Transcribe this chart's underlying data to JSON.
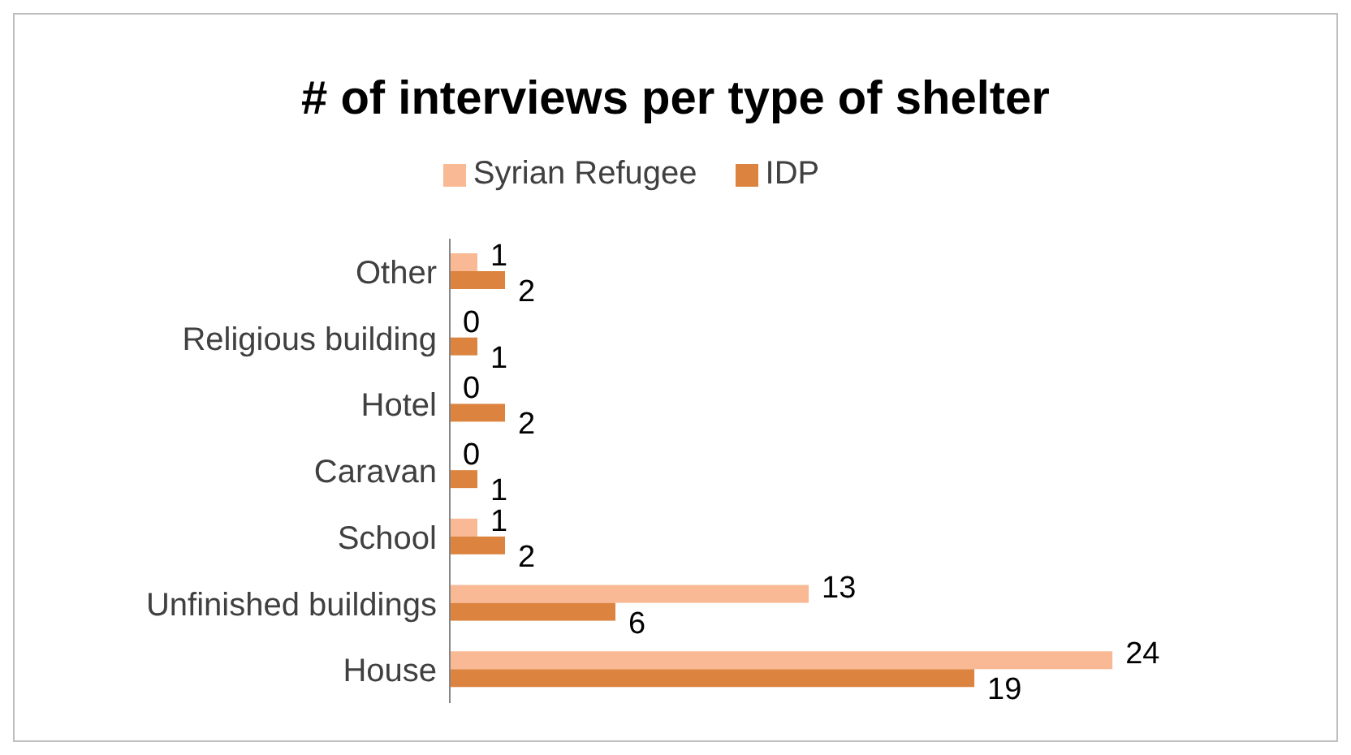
{
  "chart_data": {
    "type": "bar",
    "orientation": "horizontal",
    "title": "# of interviews per type of shelter",
    "categories": [
      "Other",
      "Religious building",
      "Hotel",
      "Caravan",
      "School",
      "Unfinished buildings",
      "House"
    ],
    "series": [
      {
        "name": "Syrian Refugee",
        "color": "#f9b994",
        "values": [
          1,
          0,
          0,
          0,
          1,
          13,
          24
        ]
      },
      {
        "name": "IDP",
        "color": "#dc843f",
        "values": [
          2,
          1,
          2,
          1,
          2,
          6,
          19
        ]
      }
    ],
    "tick_labels": "y",
    "data_labels": true,
    "legend": "top"
  }
}
